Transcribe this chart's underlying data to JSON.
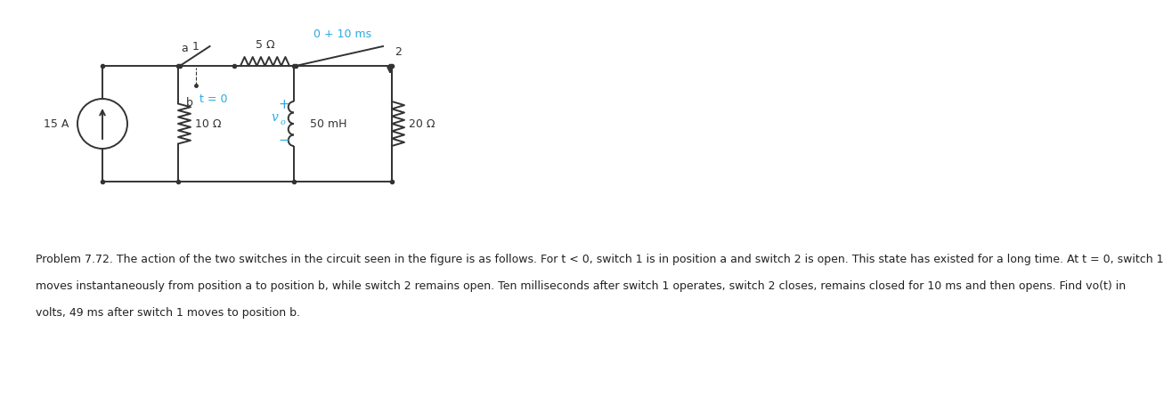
{
  "bg_color": "#ffffff",
  "circuit_color": "#333333",
  "cyan_color": "#29abe2",
  "fig_width": 12.0,
  "fig_height": 4.36,
  "problem_text_line1": "Problem 7.72. The action of the two switches in the circuit seen in the figure is as follows. For t < 0, switch 1 is in position a and switch 2 is open. This state has existed for a long time. At t = 0, switch 1",
  "problem_text_line2": "moves instantaneously from position a to position b, while switch 2 remains open. Ten milliseconds after switch 1 operates, switch 2 closes, remains closed for 10 ms and then opens. Find vo(t) in",
  "problem_text_line3": "volts, 49 ms after switch 1 moves to position b.",
  "current_source_value": "15 A",
  "R1_value": "10 Ω",
  "R2_value": "5 Ω",
  "L_value": "50 mH",
  "R3_value": "20 Ω",
  "switch1_label_a": "a",
  "switch1_label_b": "b",
  "switch1_label_t": "t = 0",
  "switch2_label": "0 + 10 ms",
  "switch2_node": "2",
  "vo_label": "v",
  "vo_sub": "o",
  "plus_label": "+",
  "minus_label": "−",
  "cs_label": "15 A"
}
